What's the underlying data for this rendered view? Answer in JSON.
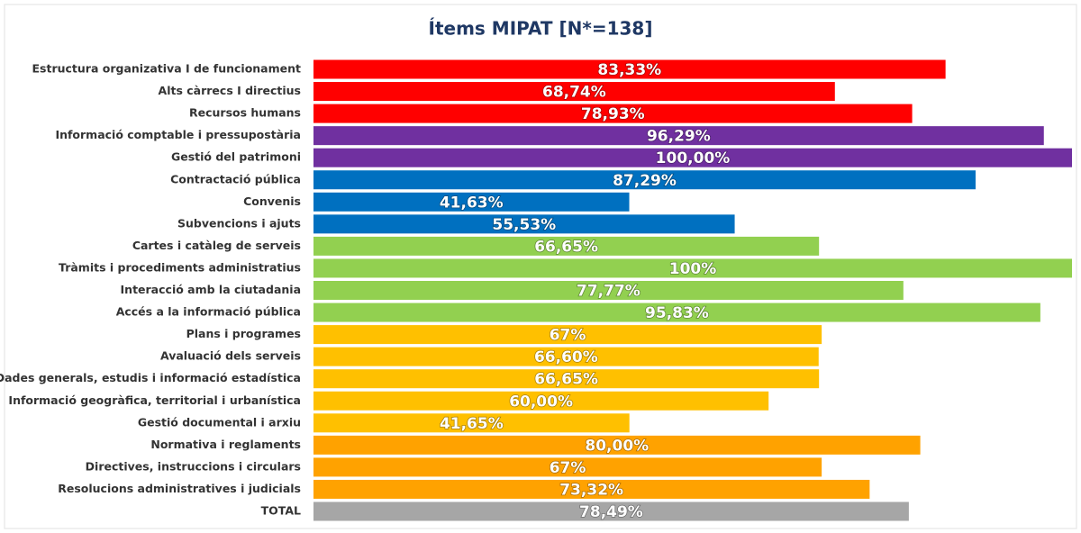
{
  "chart_data": {
    "type": "barh",
    "title": "Ítems MIPAT [N*=138]",
    "categories": [
      "Estructura organizativa I de funcionament",
      "Alts càrrecs I directius",
      "Recursos humans",
      "Informació comptable i pressupostària",
      "Gestió del patrimoni",
      "Contractació pública",
      "Convenis",
      "Subvencions i ajuts",
      "Cartes i catàleg de serveis",
      "Tràmits i procediments administratius",
      "Interacció amb la ciutadania",
      "Accés a la informació pública",
      "Plans i programes",
      "Avaluació dels serveis",
      "Dades generals, estudis i informació estadística",
      "Informació geogràfica, territorial i urbanística",
      "Gestió documental i arxiu",
      "Normativa i reglaments",
      "Directives, instruccions i circulars",
      "Resolucions administratives i judicials",
      "TOTAL"
    ],
    "values": [
      83.33,
      68.74,
      78.93,
      96.29,
      100,
      87.29,
      41.63,
      55.53,
      66.65,
      100,
      77.77,
      95.83,
      67,
      66.6,
      66.65,
      60,
      41.65,
      80,
      67,
      73.32,
      78.49
    ],
    "value_labels": [
      "83,33%",
      "68,74%",
      "78,93%",
      "96,29%",
      "100,00%",
      "87,29%",
      "41,63%",
      "55,53%",
      "66,65%",
      "100%",
      "77,77%",
      "95,83%",
      "67%",
      "66,60%",
      "66,65%",
      "60,00%",
      "41,65%",
      "80,00%",
      "67%",
      "73,32%",
      "78,49%"
    ],
    "colors": [
      "#ff0000",
      "#ff0000",
      "#ff0000",
      "#7030a0",
      "#7030a0",
      "#0070c0",
      "#0070c0",
      "#0070c0",
      "#92d050",
      "#92d050",
      "#92d050",
      "#92d050",
      "#ffc000",
      "#ffc000",
      "#ffc000",
      "#ffc000",
      "#ffc000",
      "#ffa200",
      "#ffa200",
      "#ffa200",
      "#a6a6a6"
    ],
    "xlim": [
      0,
      100
    ]
  }
}
